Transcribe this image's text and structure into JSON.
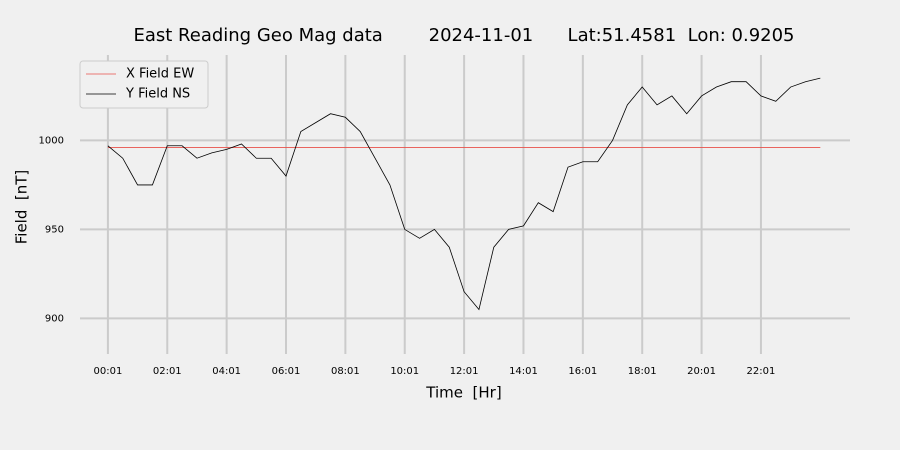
{
  "chart_data": {
    "type": "line",
    "title": "East Reading Geo Mag data        2024-11-01      Lat:51.4581  Lon: 0.9205",
    "xlabel": "Time  [Hr]",
    "ylabel": "Field  [nT]",
    "x": [
      0,
      0.5,
      1,
      1.5,
      2,
      2.5,
      3,
      3.5,
      4,
      4.5,
      5,
      5.5,
      6,
      6.5,
      7,
      7.5,
      8,
      8.5,
      9,
      9.5,
      10,
      10.5,
      11,
      11.5,
      12,
      12.5,
      13,
      13.5,
      14,
      14.5,
      15,
      15.5,
      16,
      16.5,
      17,
      17.5,
      18,
      18.5,
      19,
      19.5,
      20,
      20.5,
      21,
      21.5,
      22,
      22.5,
      23,
      23.5,
      24
    ],
    "series": [
      {
        "name": "X Field EW",
        "color": "#e8504a",
        "values": [
          996,
          996,
          996,
          996,
          996,
          996,
          996,
          996,
          996,
          996,
          996,
          996,
          996,
          996,
          996,
          996,
          996,
          996,
          996,
          996,
          996,
          996,
          996,
          996,
          996,
          996,
          996,
          996,
          996,
          996,
          996,
          996,
          996,
          996,
          996,
          996,
          996,
          996,
          996,
          996,
          996,
          996,
          996,
          996,
          996,
          996,
          996,
          996,
          996
        ]
      },
      {
        "name": "Y Field NS",
        "color": "#000000",
        "values": [
          997,
          990,
          975,
          975,
          997,
          997,
          990,
          993,
          995,
          998,
          990,
          990,
          980,
          1005,
          1010,
          1015,
          1013,
          1005,
          990,
          975,
          950,
          945,
          950,
          940,
          915,
          905,
          940,
          950,
          952,
          965,
          960,
          985,
          988,
          988,
          1000,
          1020,
          1030,
          1020,
          1025,
          1015,
          1025,
          1030,
          1033,
          1033,
          1025,
          1022,
          1030,
          1033,
          1035
        ]
      }
    ],
    "xlim": [
      -0.94,
      25
    ],
    "xticks": [
      {
        "value": 0,
        "label": "00:01"
      },
      {
        "value": 2,
        "label": "02:01"
      },
      {
        "value": 4,
        "label": "04:01"
      },
      {
        "value": 6,
        "label": "06:01"
      },
      {
        "value": 8,
        "label": "08:01"
      },
      {
        "value": 10,
        "label": "10:01"
      },
      {
        "value": 12,
        "label": "12:01"
      },
      {
        "value": 14,
        "label": "14:01"
      },
      {
        "value": 16,
        "label": "16:01"
      },
      {
        "value": 18,
        "label": "18:01"
      },
      {
        "value": 20,
        "label": "20:01"
      },
      {
        "value": 22,
        "label": "22:01"
      }
    ],
    "ylim": [
      880,
      1048
    ],
    "yticks": [
      900,
      950,
      1000
    ],
    "grid": true,
    "legend": "upper left"
  }
}
